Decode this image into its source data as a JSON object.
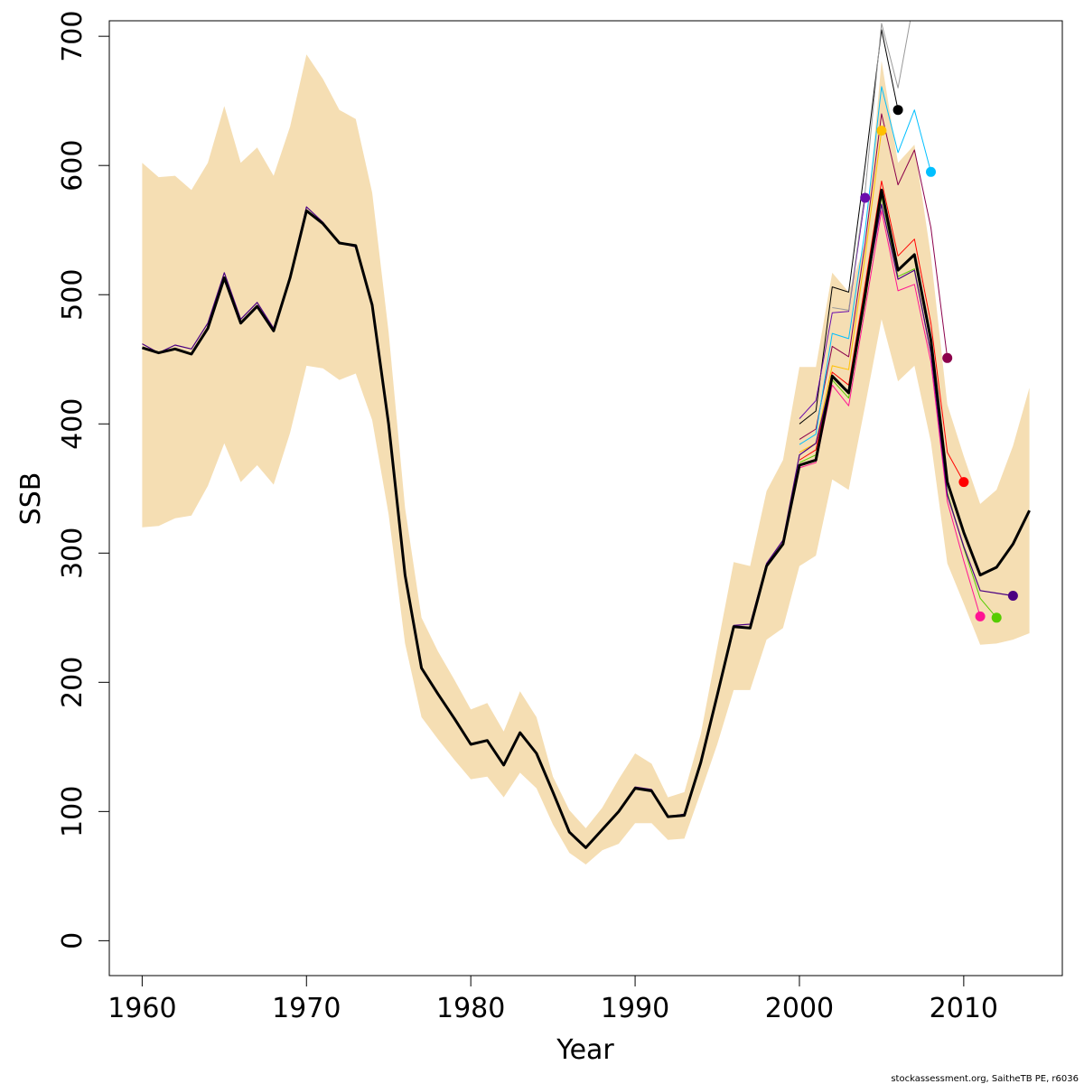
{
  "chart_data": {
    "type": "line",
    "xlabel": "Year",
    "ylabel": "SSB",
    "xlim": [
      1958,
      2016
    ],
    "ylim": [
      -27,
      712
    ],
    "xticks": [
      1960,
      1970,
      1980,
      1990,
      2000,
      2010
    ],
    "yticks": [
      0,
      100,
      200,
      300,
      400,
      500,
      600,
      700
    ],
    "grid": false,
    "legend": "none",
    "band_color": "#F5DEB3",
    "band": {
      "x": [
        1960,
        1961,
        1962,
        1963,
        1964,
        1965,
        1966,
        1967,
        1968,
        1969,
        1970,
        1971,
        1972,
        1973,
        1974,
        1975,
        1976,
        1977,
        1978,
        1979,
        1980,
        1981,
        1982,
        1983,
        1984,
        1985,
        1986,
        1987,
        1988,
        1989,
        1990,
        1991,
        1992,
        1993,
        1994,
        1995,
        1996,
        1997,
        1998,
        1999,
        2000,
        2001,
        2002,
        2003,
        2004,
        2005,
        2006,
        2007,
        2008,
        2009,
        2010,
        2011,
        2012,
        2013,
        2014
      ],
      "lower": [
        320,
        321,
        327,
        329,
        352,
        385,
        355,
        368,
        353,
        393,
        445,
        443,
        434,
        439,
        403,
        330,
        230,
        173,
        156,
        140,
        125,
        127,
        111,
        130,
        118,
        90,
        68,
        59,
        70,
        75,
        91,
        91,
        78,
        79,
        115,
        152,
        194,
        194,
        233,
        242,
        290,
        298,
        357,
        349,
        414,
        481,
        433,
        445,
        386,
        292,
        261,
        229,
        230,
        233,
        238
      ],
      "upper": [
        602,
        591,
        592,
        581,
        602,
        646,
        602,
        614,
        592,
        630,
        686,
        667,
        643,
        636,
        579,
        471,
        335,
        250,
        224,
        202,
        179,
        184,
        162,
        193,
        173,
        127,
        101,
        87,
        103,
        125,
        145,
        137,
        111,
        115,
        160,
        227,
        293,
        290,
        348,
        372,
        444,
        444,
        517,
        502,
        540,
        681,
        602,
        616,
        530,
        415,
        375,
        338,
        349,
        383,
        428
      ]
    },
    "series": [
      {
        "color": "#000000",
        "width": 3,
        "x": [
          1960,
          1961,
          1962,
          1963,
          1964,
          1965,
          1966,
          1967,
          1968,
          1969,
          1970,
          1971,
          1972,
          1973,
          1974,
          1975,
          1976,
          1977,
          1978,
          1979,
          1980,
          1981,
          1982,
          1983,
          1984,
          1985,
          1986,
          1987,
          1988,
          1989,
          1990,
          1991,
          1992,
          1993,
          1994,
          1995,
          1996,
          1997,
          1998,
          1999,
          2000,
          2001,
          2002,
          2003,
          2004,
          2005,
          2006,
          2007,
          2008,
          2009,
          2010,
          2011,
          2012,
          2013,
          2014
        ],
        "values": [
          459,
          455,
          458,
          454,
          474,
          513,
          478,
          491,
          472,
          513,
          565,
          555,
          540,
          538,
          492,
          400,
          283,
          211,
          191,
          172,
          152,
          155,
          136,
          161,
          145,
          115,
          84,
          72,
          86,
          100,
          118,
          116,
          96,
          97,
          138,
          190,
          243,
          242,
          290,
          307,
          368,
          372,
          437,
          424,
          500,
          581,
          519,
          531,
          465,
          355,
          316,
          283,
          289,
          307,
          333
        ]
      },
      {
        "color": "#4B0082",
        "width": 1.2,
        "x": [
          1960,
          1961,
          1962,
          1963,
          1964,
          1965,
          1966,
          1967,
          1968,
          1969,
          1970,
          1971,
          1972,
          1973,
          1974,
          1975,
          1976,
          1977,
          1978,
          1979,
          1980,
          1981,
          1982,
          1983,
          1984,
          1985,
          1986,
          1987,
          1988,
          1989,
          1990,
          1991,
          1992,
          1993,
          1994,
          1995,
          1996,
          1997,
          1998,
          1999,
          2000,
          2001,
          2002,
          2003,
          2004,
          2005,
          2006,
          2007,
          2008,
          2009,
          2010,
          2011,
          2012,
          2013
        ],
        "values": [
          462,
          455,
          461,
          458,
          478,
          517,
          481,
          494,
          474,
          514,
          568,
          556,
          540,
          537,
          491,
          399,
          283,
          211,
          191,
          172,
          152,
          155,
          136,
          161,
          145,
          115,
          84,
          72,
          86,
          100,
          119,
          117,
          96,
          98,
          139,
          191,
          244,
          245,
          292,
          310,
          376,
          385,
          437,
          425,
          500,
          570,
          512,
          519,
          455,
          345,
          305,
          271,
          269,
          267
        ],
        "marker": true
      },
      {
        "color": "#55CC00",
        "width": 1,
        "x": [
          2000,
          2001,
          2002,
          2003,
          2004,
          2005,
          2006,
          2007,
          2008,
          2009,
          2010,
          2011,
          2012
        ],
        "values": [
          370,
          376,
          434,
          420,
          495,
          576,
          514,
          520,
          455,
          347,
          304,
          265,
          250
        ],
        "marker": true
      },
      {
        "color": "#FF1493",
        "width": 1,
        "x": [
          2000,
          2001,
          2002,
          2003,
          2004,
          2005,
          2006,
          2007,
          2008,
          2009,
          2010,
          2011
        ],
        "values": [
          366,
          370,
          430,
          414,
          489,
          565,
          503,
          508,
          448,
          340,
          294,
          251
        ],
        "marker": true
      },
      {
        "color": "#FF0000",
        "width": 1,
        "x": [
          2000,
          2001,
          2002,
          2003,
          2004,
          2005,
          2006,
          2007,
          2008,
          2009,
          2010
        ],
        "values": [
          372,
          380,
          440,
          430,
          508,
          588,
          530,
          543,
          478,
          378,
          355
        ],
        "marker": true
      },
      {
        "color": "#8B004B",
        "width": 1,
        "x": [
          2000,
          2001,
          2002,
          2003,
          2004,
          2005,
          2006,
          2007,
          2008,
          2009
        ],
        "values": [
          388,
          396,
          460,
          452,
          540,
          640,
          585,
          612,
          552,
          451
        ],
        "marker": true
      },
      {
        "color": "#00BFFF",
        "width": 1,
        "x": [
          2000,
          2001,
          2002,
          2003,
          2004,
          2005,
          2006,
          2007,
          2008
        ],
        "values": [
          384,
          392,
          470,
          466,
          550,
          661,
          610,
          643,
          595
        ],
        "marker": true
      },
      {
        "color": "#000000",
        "width": 1,
        "x": [
          2000,
          2001,
          2002,
          2003,
          2004,
          2005,
          2006
        ],
        "values": [
          400,
          410,
          506,
          502,
          600,
          705,
          643
        ],
        "marker": true
      },
      {
        "color": "#FFC000",
        "width": 1,
        "x": [
          2000,
          2001,
          2002,
          2003,
          2004,
          2005
        ],
        "values": [
          378,
          385,
          445,
          442,
          530,
          627
        ],
        "marker": true
      },
      {
        "color": "#6A0DAD",
        "width": 1,
        "x": [
          2000,
          2001,
          2002,
          2003,
          2004
        ],
        "values": [
          404,
          418,
          486,
          487,
          575
        ],
        "marker": true
      },
      {
        "color": "#999999",
        "width": 1,
        "x": [
          2002,
          2003,
          2004,
          2005,
          2006,
          2007
        ],
        "values": [
          490,
          488,
          580,
          710,
          660,
          730
        ]
      }
    ]
  },
  "credit": "stockassessment.org, SaitheTB  PE, r6036"
}
